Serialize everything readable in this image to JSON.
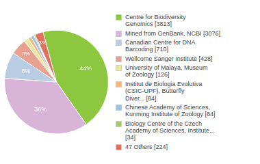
{
  "chart_data": {
    "type": "pie",
    "categories": [
      "Centre for Biodiversity\nGenomics [3813]",
      "Mined from GenBank, NCBI [3076]",
      "Canadian Centre for DNA\nBarcoding [710]",
      "Wellcome Sanger Institute [428]",
      "University of Malaya, Museum\nof Zoology [126]",
      "Institut de Biologia Evolutiva\n(CSIC-UPF), Butterfly\nDiver... [84]",
      "Chinese Academy of Sciences,\nKunming Institute of Zoology [84]",
      "Biology Centre of the Czech\nAcademy of Sciences, Institute...\n[34]",
      "47 Others [224]"
    ],
    "values": [
      3813,
      3076,
      710,
      428,
      126,
      84,
      84,
      34,
      224
    ],
    "value_labels": [
      "44%",
      "36%",
      "8%",
      "5%",
      null,
      null,
      null,
      null,
      "3%"
    ],
    "colors": [
      "#8dc63f",
      "#d8b4d8",
      "#b8cce4",
      "#e8a090",
      "#e8e8a0",
      "#f5b87a",
      "#9dc3e6",
      "#a9c56e",
      "#e07060"
    ],
    "legend": "right"
  }
}
